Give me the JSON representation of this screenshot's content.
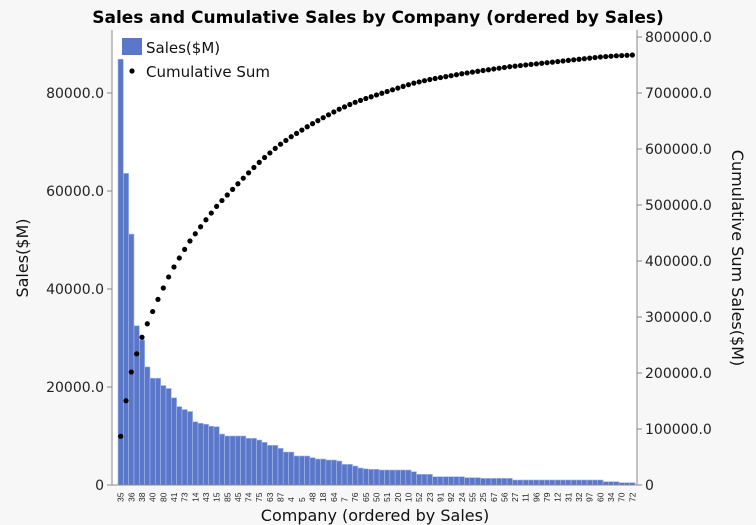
{
  "chart_data": {
    "type": "bar+scatter",
    "title": "Sales and Cumulative Sales by Company (ordered by Sales)",
    "xlabel": "Company (ordered by Sales)",
    "ylabel": "Sales($M)",
    "y2label": "Cumulative Sum Sales($M)",
    "ylim": [
      0,
      90000
    ],
    "y2lim": [
      0,
      800000
    ],
    "yticks": [
      "0",
      "20000.0",
      "40000.0",
      "60000.0",
      "80000.0"
    ],
    "yticks_values": [
      0,
      20000,
      40000,
      60000,
      80000
    ],
    "y2ticks": [
      "0",
      "100000.0",
      "200000.0",
      "300000.0",
      "400000.0",
      "500000.0",
      "600000.0",
      "700000.0",
      "800000.0"
    ],
    "y2ticks_values": [
      0,
      100000,
      200000,
      300000,
      400000,
      500000,
      600000,
      700000,
      800000
    ],
    "xtick_labels_every_other_bar": [
      "35",
      "36",
      "38",
      "40",
      "80",
      "41",
      "73",
      "14",
      "43",
      "15",
      "85",
      "45",
      "74",
      "75",
      "63",
      "87",
      "4",
      "5",
      "48",
      "18",
      "64",
      "7",
      "76",
      "65",
      "50",
      "51",
      "20",
      "10",
      "52",
      "23",
      "91",
      "92",
      "24",
      "55",
      "25",
      "67",
      "56",
      "27",
      "11",
      "96",
      "79",
      "12",
      "31",
      "32",
      "97",
      "60",
      "34",
      "70",
      "72"
    ],
    "legend": {
      "position": "top-left",
      "entries": [
        "Sales($M)",
        "Cumulative Sum"
      ]
    },
    "series": [
      {
        "name": "Sales($M)",
        "type": "bar",
        "color": "#5b77c9",
        "values": [
          86900,
          63600,
          51200,
          32500,
          29600,
          24100,
          21800,
          21800,
          20300,
          19700,
          17800,
          16000,
          15400,
          15000,
          12900,
          12600,
          12400,
          12000,
          11900,
          10400,
          10000,
          10000,
          10000,
          10000,
          9530,
          9530,
          9180,
          8710,
          8100,
          8100,
          7480,
          6730,
          6730,
          5920,
          5920,
          5920,
          5580,
          5300,
          5300,
          5100,
          5100,
          4900,
          4220,
          4220,
          3880,
          3470,
          3300,
          3200,
          3200,
          3060,
          3060,
          3060,
          3060,
          3060,
          3060,
          2720,
          2180,
          2180,
          2180,
          1700,
          1700,
          1700,
          1700,
          1700,
          1700,
          1500,
          1500,
          1500,
          1360,
          1360,
          1360,
          1360,
          1360,
          1360,
          1020,
          1020,
          1020,
          1020,
          1020,
          1020,
          1020,
          1020,
          1020,
          1020,
          1020,
          1020,
          1020,
          1020,
          1020,
          1020,
          1020,
          680,
          680,
          680,
          480,
          480,
          480
        ]
      },
      {
        "name": "Cumulative Sum",
        "type": "scatter",
        "color": "#000000",
        "values": "cumulative sum of Sales($M)"
      }
    ]
  }
}
